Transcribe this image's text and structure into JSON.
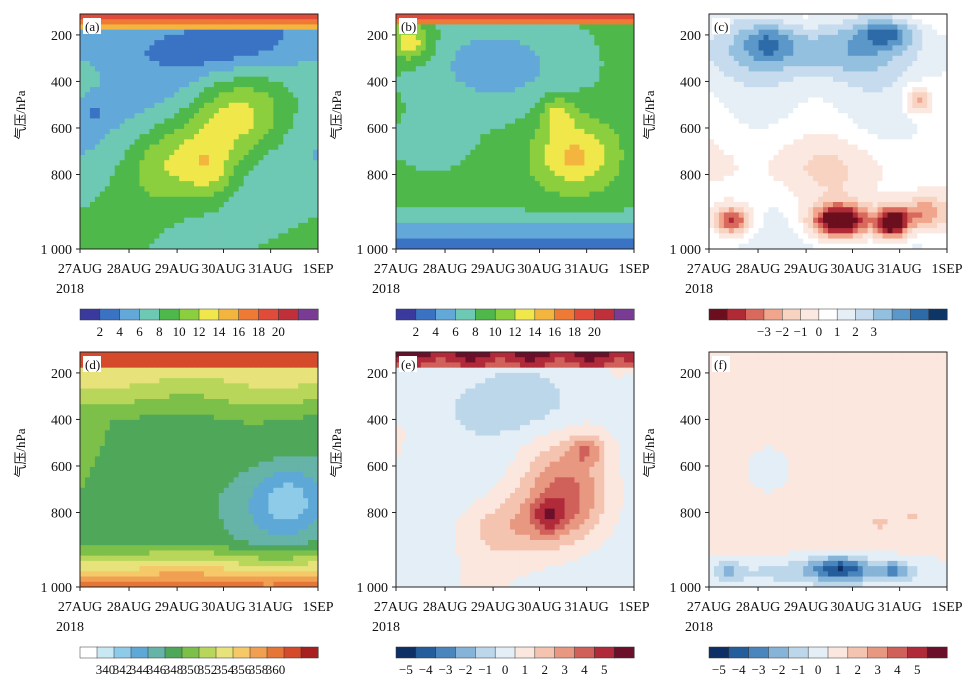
{
  "figure": {
    "x_ticks": [
      "27AUG",
      "28AUG",
      "29AUG",
      "30AUG",
      "31AUG",
      "1SEP"
    ],
    "x_year": "2018",
    "y_ticks": [
      "200",
      "400",
      "600",
      "800",
      "1 000"
    ],
    "y_label": "气压/hPa"
  },
  "chart_data": [
    {
      "type": "heatmap",
      "panel": "(a)",
      "title": "(a)",
      "xlabel": "",
      "ylabel": "气压/hPa",
      "ylim": [
        1000,
        100
      ],
      "xlim": [
        "27AUG 2018",
        "1SEP 2018"
      ],
      "levels": [
        "2",
        "4",
        "6",
        "8",
        "10",
        "12",
        "14",
        "16",
        "18",
        "20"
      ],
      "colors": [
        "#3a3a9e",
        "#3a73c4",
        "#62a8d8",
        "#6ec9b4",
        "#4fb84a",
        "#8ccf3e",
        "#f0e84a",
        "#f4b53f",
        "#ef7a35",
        "#e04b3a",
        "#c0303a",
        "#7a3b95"
      ]
    },
    {
      "type": "heatmap",
      "panel": "(b)",
      "title": "(b)",
      "xlabel": "",
      "ylabel": "气压/hPa",
      "ylim": [
        1000,
        100
      ],
      "xlim": [
        "27AUG 2018",
        "1SEP 2018"
      ],
      "levels": [
        "2",
        "4",
        "6",
        "8",
        "10",
        "12",
        "14",
        "16",
        "18",
        "20"
      ],
      "colors": [
        "#3a3a9e",
        "#3a73c4",
        "#62a8d8",
        "#6ec9b4",
        "#4fb84a",
        "#8ccf3e",
        "#f0e84a",
        "#f4b53f",
        "#ef7a35",
        "#e04b3a",
        "#c0303a",
        "#7a3b95"
      ]
    },
    {
      "type": "heatmap",
      "panel": "(c)",
      "title": "(c)",
      "xlabel": "",
      "ylabel": "气压/hPa",
      "ylim": [
        1000,
        100
      ],
      "xlim": [
        "27AUG 2018",
        "1SEP 2018"
      ],
      "levels": [
        "−3",
        "−2",
        "−1",
        "0",
        "1",
        "2",
        "3"
      ],
      "colors": [
        "#6b0f1f",
        "#b02a35",
        "#d9695c",
        "#f0a58c",
        "#f8d3c2",
        "#fbe9e1",
        "#ffffff",
        "#e6eef6",
        "#c6dcee",
        "#94c0e0",
        "#5b98c9",
        "#2d6aa8",
        "#0d3566"
      ]
    },
    {
      "type": "heatmap",
      "panel": "(d)",
      "title": "(d)",
      "xlabel": "",
      "ylabel": "气压/hPa",
      "ylim": [
        1000,
        100
      ],
      "xlim": [
        "27AUG 2018",
        "1SEP 2018"
      ],
      "levels": [
        "340",
        "342",
        "344",
        "346",
        "348",
        "350",
        "352",
        "354",
        "356",
        "358",
        "360"
      ],
      "colors": [
        "#ffffff",
        "#c8e8f4",
        "#8ecbe8",
        "#5ea8d8",
        "#66b3a8",
        "#4fa85a",
        "#7cc04a",
        "#b8d65a",
        "#e8e27a",
        "#f5c868",
        "#f0a050",
        "#e57638",
        "#d44a2a",
        "#a81f1f"
      ]
    },
    {
      "type": "heatmap",
      "panel": "(e)",
      "title": "(e)",
      "xlabel": "",
      "ylabel": "气压/hPa",
      "ylim": [
        1000,
        100
      ],
      "xlim": [
        "27AUG 2018",
        "1SEP 2018"
      ],
      "levels": [
        "−5",
        "−4",
        "−3",
        "−2",
        "−1",
        "0",
        "1",
        "2",
        "3",
        "4",
        "5"
      ],
      "colors": [
        "#0d2f66",
        "#245d9c",
        "#4a86bd",
        "#86b3d8",
        "#bcd6ea",
        "#e4eef6",
        "#fbe7de",
        "#f5c4b0",
        "#e89880",
        "#d0605a",
        "#b02a3a",
        "#6b0f2a"
      ]
    },
    {
      "type": "heatmap",
      "panel": "(f)",
      "title": "(f)",
      "xlabel": "",
      "ylabel": "气压/hPa",
      "ylim": [
        1000,
        100
      ],
      "xlim": [
        "27AUG 2018",
        "1SEP 2018"
      ],
      "levels": [
        "−5",
        "−4",
        "−3",
        "−2",
        "−1",
        "0",
        "1",
        "2",
        "3",
        "4",
        "5"
      ],
      "colors": [
        "#0d2f66",
        "#245d9c",
        "#4a86bd",
        "#86b3d8",
        "#bcd6ea",
        "#e4eef6",
        "#fbe7de",
        "#f5c4b0",
        "#e89880",
        "#d0605a",
        "#b02a3a",
        "#6b0f2a"
      ]
    }
  ]
}
